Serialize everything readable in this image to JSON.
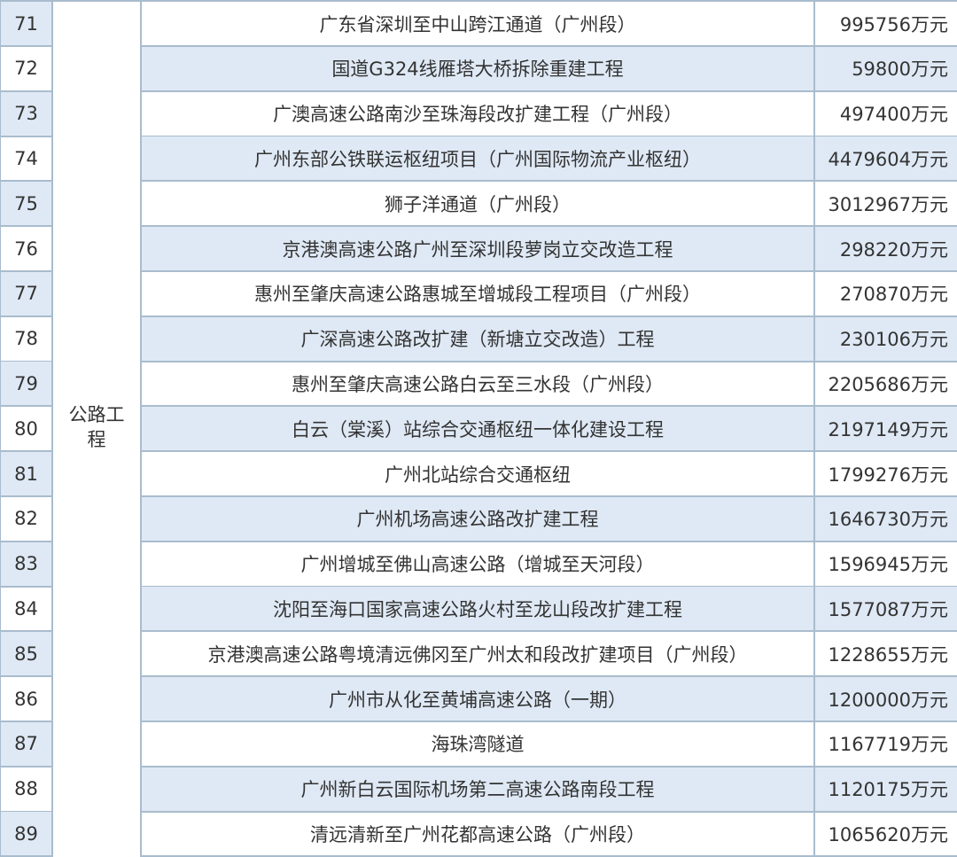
{
  "table": {
    "category": "公路工程",
    "colors": {
      "stripe": "#dfe9f5",
      "border": "#a9bccd"
    },
    "rows": [
      {
        "no": "71",
        "name": "广东省深圳至中山跨江通道（广州段）",
        "value": "995756万元"
      },
      {
        "no": "72",
        "name": "国道G324线雁塔大桥拆除重建工程",
        "value": "59800万元"
      },
      {
        "no": "73",
        "name": "广澳高速公路南沙至珠海段改扩建工程（广州段）",
        "value": "497400万元"
      },
      {
        "no": "74",
        "name": "广州东部公铁联运枢纽项目（广州国际物流产业枢纽）",
        "value": "4479604万元"
      },
      {
        "no": "75",
        "name": "狮子洋通道（广州段）",
        "value": "3012967万元"
      },
      {
        "no": "76",
        "name": "京港澳高速公路广州至深圳段萝岗立交改造工程",
        "value": "298220万元"
      },
      {
        "no": "77",
        "name": "惠州至肇庆高速公路惠城至增城段工程项目（广州段）",
        "value": "270870万元"
      },
      {
        "no": "78",
        "name": "广深高速公路改扩建（新塘立交改造）工程",
        "value": "230106万元"
      },
      {
        "no": "79",
        "name": "惠州至肇庆高速公路白云至三水段（广州段）",
        "value": "2205686万元"
      },
      {
        "no": "80",
        "name": "白云（棠溪）站综合交通枢纽一体化建设工程",
        "value": "2197149万元"
      },
      {
        "no": "81",
        "name": "广州北站综合交通枢纽",
        "value": "1799276万元"
      },
      {
        "no": "82",
        "name": "广州机场高速公路改扩建工程",
        "value": "1646730万元"
      },
      {
        "no": "83",
        "name": "广州增城至佛山高速公路（增城至天河段）",
        "value": "1596945万元"
      },
      {
        "no": "84",
        "name": "沈阳至海口国家高速公路火村至龙山段改扩建工程",
        "value": "1577087万元"
      },
      {
        "no": "85",
        "name": "京港澳高速公路粤境清远佛冈至广州太和段改扩建项目（广州段）",
        "value": "1228655万元"
      },
      {
        "no": "86",
        "name": "广州市从化至黄埔高速公路（一期）",
        "value": "1200000万元"
      },
      {
        "no": "87",
        "name": "海珠湾隧道",
        "value": "1167719万元"
      },
      {
        "no": "88",
        "name": "广州新白云国际机场第二高速公路南段工程",
        "value": "1120175万元"
      },
      {
        "no": "89",
        "name": "清远清新至广州花都高速公路（广州段）",
        "value": "1065620万元"
      }
    ]
  }
}
